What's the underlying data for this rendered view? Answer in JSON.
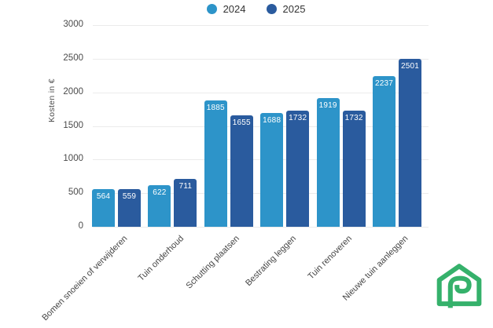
{
  "chart_data": {
    "type": "bar",
    "title": "",
    "categories": [
      "Bomen snoeien of verwijderen",
      "Tuin onderhoud",
      "Schutting plaatsen",
      "Bestrating leggen",
      "Tuin renoveren",
      "Nieuwe tuin aanleggen"
    ],
    "series": [
      {
        "name": "2024",
        "color": "#2D94C9",
        "values": [
          564,
          622,
          1885,
          1688,
          1919,
          2237
        ]
      },
      {
        "name": "2025",
        "color": "#2A5B9E",
        "values": [
          559,
          711,
          1655,
          1732,
          1732,
          2501
        ]
      }
    ],
    "xlabel": "",
    "ylabel": "Kosten in €",
    "ylim": [
      0,
      3000
    ],
    "yticks": [
      0,
      500,
      1000,
      1500,
      2000,
      2500,
      3000
    ],
    "grid": true,
    "legend_position": "top-center",
    "bar_value_labels": true
  },
  "legend": {
    "items": [
      {
        "label": "2024",
        "color": "#2D94C9"
      },
      {
        "label": "2025",
        "color": "#2A5B9E"
      }
    ]
  },
  "logo": {
    "name": "green-house-logo",
    "color": "#35B16B"
  }
}
